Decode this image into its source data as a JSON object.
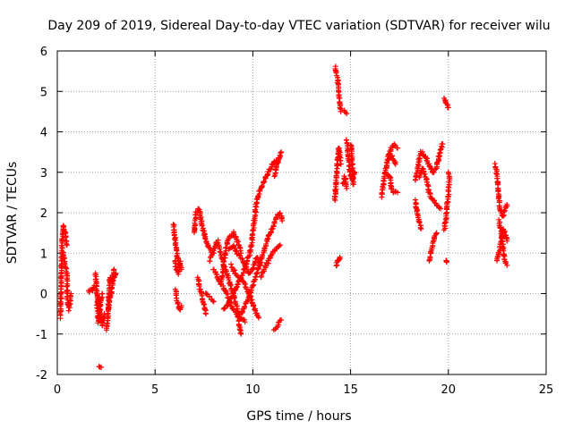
{
  "chart_data": {
    "type": "scatter",
    "title": "Day 209 of 2019, Sidereal Day-to-day VTEC variation (SDTVAR) for receiver wilu",
    "xlabel": "GPS time / hours",
    "ylabel": "SDTVAR / TECUs",
    "xlim": [
      0,
      25
    ],
    "ylim": [
      -2,
      6
    ],
    "xticks": [
      "0",
      "5",
      "10",
      "15",
      "20",
      "25"
    ],
    "yticks": [
      "-2",
      "-1",
      "0",
      "1",
      "2",
      "3",
      "4",
      "5",
      "6"
    ],
    "grid": true,
    "marker": "+",
    "series": [
      {
        "name": "SDTVAR",
        "color": "#ff0000",
        "tracks": [
          [
            [
              0.15,
              -0.6
            ],
            [
              0.2,
              0.4
            ],
            [
              0.25,
              1.2
            ],
            [
              0.3,
              1.7
            ],
            [
              0.4,
              1.5
            ],
            [
              0.5,
              1.2
            ]
          ],
          [
            [
              0.3,
              1.0
            ],
            [
              0.4,
              0.7
            ],
            [
              0.5,
              0.5
            ],
            [
              0.5,
              -0.1
            ],
            [
              0.6,
              -0.4
            ],
            [
              0.7,
              0.0
            ]
          ],
          [
            [
              1.6,
              0.05
            ],
            [
              1.8,
              0.1
            ],
            [
              1.9,
              0.2
            ]
          ],
          [
            [
              1.95,
              0.5
            ],
            [
              2.0,
              0.2
            ],
            [
              2.05,
              -0.3
            ],
            [
              2.1,
              -0.7
            ],
            [
              2.2,
              -0.3
            ],
            [
              2.3,
              0.0
            ]
          ],
          [
            [
              2.1,
              -0.1
            ],
            [
              2.2,
              -0.5
            ],
            [
              2.3,
              -0.8
            ],
            [
              2.4,
              -0.5
            ]
          ],
          [
            [
              2.15,
              -1.8
            ],
            [
              2.25,
              -1.82
            ]
          ],
          [
            [
              2.5,
              -0.9
            ],
            [
              2.6,
              -0.5
            ],
            [
              2.65,
              0.0
            ],
            [
              2.7,
              0.4
            ],
            [
              2.8,
              0.3
            ],
            [
              2.9,
              0.6
            ]
          ],
          [
            [
              2.6,
              -0.4
            ],
            [
              2.7,
              -0.1
            ],
            [
              2.8,
              0.2
            ],
            [
              2.9,
              0.4
            ],
            [
              3.0,
              0.5
            ]
          ],
          [
            [
              5.95,
              1.7
            ],
            [
              6.05,
              1.2
            ],
            [
              6.15,
              0.9
            ],
            [
              6.25,
              0.7
            ],
            [
              6.35,
              0.6
            ]
          ],
          [
            [
              6.0,
              0.8
            ],
            [
              6.1,
              0.6
            ],
            [
              6.2,
              0.5
            ],
            [
              6.3,
              0.8
            ]
          ],
          [
            [
              6.05,
              0.1
            ],
            [
              6.15,
              -0.2
            ],
            [
              6.25,
              -0.4
            ],
            [
              6.35,
              -0.3
            ]
          ],
          [
            [
              7.0,
              1.5
            ],
            [
              7.1,
              2.0
            ],
            [
              7.25,
              2.1
            ],
            [
              7.4,
              1.7
            ],
            [
              7.6,
              1.3
            ],
            [
              7.8,
              1.1
            ],
            [
              8.0,
              1.0
            ]
          ],
          [
            [
              7.2,
              0.4
            ],
            [
              7.3,
              0.1
            ],
            [
              7.4,
              -0.1
            ],
            [
              7.5,
              -0.3
            ],
            [
              7.6,
              -0.5
            ]
          ],
          [
            [
              7.6,
              0.0
            ],
            [
              7.8,
              -0.1
            ],
            [
              8.0,
              -0.2
            ]
          ],
          [
            [
              7.8,
              0.8
            ],
            [
              8.0,
              1.1
            ],
            [
              8.2,
              1.3
            ],
            [
              8.4,
              0.9
            ],
            [
              8.6,
              0.6
            ],
            [
              8.8,
              0.3
            ],
            [
              9.0,
              0.0
            ],
            [
              9.2,
              -0.4
            ],
            [
              9.3,
              -0.8
            ],
            [
              9.4,
              -1.0
            ]
          ],
          [
            [
              8.0,
              0.6
            ],
            [
              8.2,
              0.4
            ],
            [
              8.4,
              0.2
            ],
            [
              8.6,
              0.1
            ],
            [
              8.8,
              -0.2
            ],
            [
              9.0,
              -0.4
            ],
            [
              9.2,
              -0.5
            ],
            [
              9.4,
              -0.6
            ],
            [
              9.6,
              -0.7
            ]
          ],
          [
            [
              8.4,
              0.3
            ],
            [
              8.5,
              0.7
            ],
            [
              8.6,
              1.0
            ],
            [
              8.7,
              1.3
            ],
            [
              8.8,
              1.4
            ],
            [
              9.0,
              1.5
            ],
            [
              9.2,
              1.3
            ],
            [
              9.4,
              1.0
            ]
          ],
          [
            [
              8.8,
              1.1
            ],
            [
              9.0,
              1.2
            ],
            [
              9.2,
              1.0
            ],
            [
              9.4,
              0.9
            ],
            [
              9.6,
              0.7
            ],
            [
              9.8,
              0.5
            ],
            [
              10.0,
              0.6
            ],
            [
              10.2,
              0.9
            ],
            [
              10.4,
              0.7
            ]
          ],
          [
            [
              8.5,
              -0.4
            ],
            [
              8.7,
              -0.3
            ],
            [
              8.9,
              -0.1
            ],
            [
              9.1,
              0.1
            ],
            [
              9.3,
              0.3
            ],
            [
              9.5,
              0.5
            ],
            [
              9.7,
              0.8
            ],
            [
              9.9,
              1.1
            ],
            [
              10.0,
              1.5
            ],
            [
              10.1,
              1.9
            ],
            [
              10.2,
              2.3
            ],
            [
              10.4,
              2.6
            ],
            [
              10.6,
              2.8
            ],
            [
              10.8,
              3.0
            ],
            [
              11.0,
              3.2
            ],
            [
              11.2,
              3.3
            ]
          ],
          [
            [
              8.9,
              0.7
            ],
            [
              9.1,
              0.5
            ],
            [
              9.3,
              0.4
            ],
            [
              9.5,
              0.3
            ],
            [
              9.7,
              0.1
            ],
            [
              9.9,
              -0.1
            ],
            [
              10.1,
              -0.4
            ],
            [
              10.3,
              -0.6
            ]
          ],
          [
            [
              9.4,
              -0.5
            ],
            [
              9.6,
              -0.3
            ],
            [
              9.8,
              -0.1
            ],
            [
              10.0,
              0.2
            ],
            [
              10.2,
              0.5
            ],
            [
              10.4,
              0.8
            ],
            [
              10.6,
              1.1
            ],
            [
              10.8,
              1.4
            ],
            [
              11.0,
              1.6
            ],
            [
              11.2,
              1.9
            ],
            [
              11.4,
              2.0
            ],
            [
              11.5,
              1.8
            ]
          ],
          [
            [
              10.4,
              0.4
            ],
            [
              10.6,
              0.6
            ],
            [
              10.8,
              0.8
            ],
            [
              11.0,
              1.0
            ],
            [
              11.2,
              1.1
            ],
            [
              11.4,
              1.2
            ]
          ],
          [
            [
              11.1,
              2.9
            ],
            [
              11.2,
              3.1
            ],
            [
              11.3,
              3.3
            ],
            [
              11.45,
              3.5
            ]
          ],
          [
            [
              11.1,
              -0.9
            ],
            [
              11.25,
              -0.8
            ],
            [
              11.35,
              -0.7
            ],
            [
              11.45,
              -0.65
            ]
          ],
          [
            [
              14.2,
              5.6
            ],
            [
              14.3,
              5.4
            ],
            [
              14.4,
              5.0
            ],
            [
              14.5,
              4.5
            ]
          ],
          [
            [
              14.2,
              2.3
            ],
            [
              14.25,
              2.7
            ],
            [
              14.3,
              3.0
            ],
            [
              14.35,
              3.4
            ],
            [
              14.4,
              3.6
            ],
            [
              14.5,
              3.2
            ]
          ],
          [
            [
              14.25,
              0.7
            ],
            [
              14.35,
              0.8
            ],
            [
              14.45,
              0.9
            ]
          ],
          [
            [
              14.7,
              4.5
            ],
            [
              14.8,
              4.45
            ]
          ],
          [
            [
              14.8,
              3.8
            ],
            [
              14.9,
              3.3
            ],
            [
              15.0,
              2.9
            ],
            [
              15.1,
              2.8
            ],
            [
              15.2,
              3.0
            ]
          ],
          [
            [
              15.0,
              3.7
            ],
            [
              15.05,
              3.5
            ],
            [
              15.1,
              3.0
            ],
            [
              15.15,
              2.7
            ]
          ],
          [
            [
              14.6,
              2.7
            ],
            [
              14.7,
              2.9
            ],
            [
              14.8,
              2.6
            ]
          ],
          [
            [
              16.6,
              2.4
            ],
            [
              16.7,
              2.8
            ],
            [
              16.8,
              3.1
            ],
            [
              16.9,
              3.4
            ],
            [
              17.0,
              3.5
            ],
            [
              17.2,
              3.7
            ],
            [
              17.4,
              3.6
            ]
          ],
          [
            [
              16.8,
              3.0
            ],
            [
              17.0,
              2.9
            ],
            [
              17.1,
              2.6
            ],
            [
              17.2,
              2.5
            ],
            [
              17.4,
              2.5
            ]
          ],
          [
            [
              16.9,
              3.3
            ],
            [
              17.1,
              3.4
            ],
            [
              17.3,
              3.2
            ]
          ],
          [
            [
              18.3,
              2.8
            ],
            [
              18.4,
              3.0
            ],
            [
              18.5,
              3.3
            ],
            [
              18.6,
              3.5
            ],
            [
              18.8,
              3.4
            ],
            [
              19.0,
              3.2
            ],
            [
              19.2,
              3.0
            ],
            [
              19.4,
              3.1
            ],
            [
              19.6,
              3.6
            ],
            [
              19.7,
              3.7
            ]
          ],
          [
            [
              18.5,
              2.9
            ],
            [
              18.7,
              3.1
            ],
            [
              18.9,
              2.8
            ],
            [
              19.0,
              2.5
            ],
            [
              19.2,
              2.3
            ],
            [
              19.4,
              2.2
            ],
            [
              19.6,
              2.1
            ]
          ],
          [
            [
              18.3,
              2.3
            ],
            [
              18.4,
              2.0
            ],
            [
              18.5,
              1.8
            ],
            [
              18.6,
              1.6
            ]
          ],
          [
            [
              19.0,
              0.8
            ],
            [
              19.1,
              1.0
            ],
            [
              19.2,
              1.2
            ],
            [
              19.3,
              1.4
            ],
            [
              19.4,
              1.5
            ]
          ],
          [
            [
              19.8,
              1.6
            ],
            [
              19.9,
              2.0
            ],
            [
              20.0,
              2.4
            ],
            [
              20.05,
              2.9
            ],
            [
              20.0,
              3.0
            ]
          ],
          [
            [
              19.8,
              4.8
            ],
            [
              19.9,
              4.7
            ],
            [
              20.0,
              4.6
            ]
          ],
          [
            [
              19.9,
              0.8
            ]
          ],
          [
            [
              22.4,
              3.2
            ],
            [
              22.5,
              2.9
            ],
            [
              22.55,
              2.5
            ],
            [
              22.6,
              2.2
            ],
            [
              22.7,
              2.0
            ],
            [
              22.8,
              1.9
            ],
            [
              22.9,
              2.1
            ],
            [
              23.0,
              2.2
            ]
          ],
          [
            [
              22.5,
              0.8
            ],
            [
              22.6,
              1.0
            ],
            [
              22.7,
              1.3
            ],
            [
              22.8,
              1.6
            ],
            [
              22.9,
              1.5
            ],
            [
              23.0,
              1.3
            ]
          ],
          [
            [
              22.6,
              1.8
            ],
            [
              22.7,
              1.5
            ],
            [
              22.8,
              1.1
            ],
            [
              22.9,
              0.8
            ],
            [
              23.0,
              0.7
            ]
          ]
        ]
      }
    ]
  }
}
